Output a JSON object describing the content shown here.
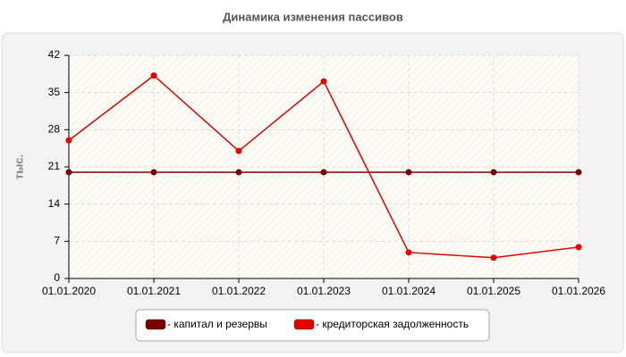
{
  "chart_data": {
    "type": "line",
    "title": "Динамика изменения пассивов",
    "y_label": "тыс.",
    "categories": [
      "01.01.2020",
      "01.01.2021",
      "01.01.2022",
      "01.01.2023",
      "01.01.2024",
      "01.01.2025",
      "01.01.2026"
    ],
    "series": [
      {
        "name": "- капитал и резервы",
        "color": "#7a0000",
        "values": [
          20,
          20,
          20,
          20,
          20,
          20,
          20
        ]
      },
      {
        "name": "- кредиторская задолженность",
        "color": "#e60000",
        "values": [
          26,
          38.2,
          24,
          37.1,
          4.9,
          3.9,
          5.9
        ]
      }
    ],
    "ylim": [
      0,
      42
    ],
    "yticks": [
      0,
      7,
      14,
      21,
      28,
      35,
      42
    ],
    "grid": true
  }
}
